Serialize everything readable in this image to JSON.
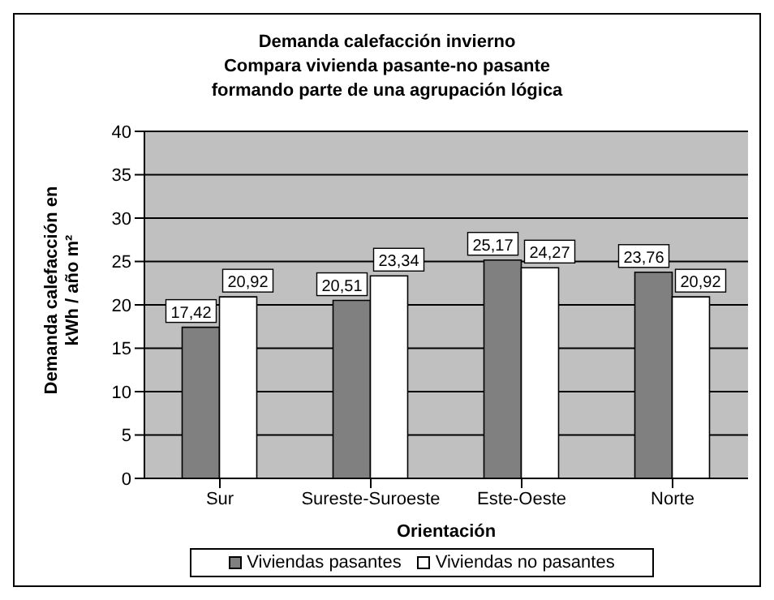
{
  "chart_data": {
    "type": "bar",
    "title": "Demanda calefacción invierno\nCompara vivienda pasante-no pasante\nformando parte de una agrupación lógica",
    "xlabel": "Orientación",
    "ylabel": "Demanda calefacción en kWh / año m²",
    "categories": [
      "Sur",
      "Sureste-Suroeste",
      "Este-Oeste",
      "Norte"
    ],
    "series": [
      {
        "name": "Viviendas pasantes",
        "color": "#808080",
        "values": [
          17.42,
          20.51,
          25.17,
          23.76
        ],
        "value_labels": [
          "17,42",
          "20,51",
          "25,17",
          "23,76"
        ]
      },
      {
        "name": "Viviendas no pasantes",
        "color": "#ffffff",
        "values": [
          20.92,
          23.34,
          24.27,
          20.92
        ],
        "value_labels": [
          "20,92",
          "23,34",
          "24,27",
          "20,92"
        ]
      }
    ],
    "ylim": [
      0,
      40
    ],
    "yticks": [
      0,
      5,
      10,
      15,
      20,
      25,
      30,
      35,
      40
    ],
    "grid": "y",
    "legend": "bottom"
  }
}
